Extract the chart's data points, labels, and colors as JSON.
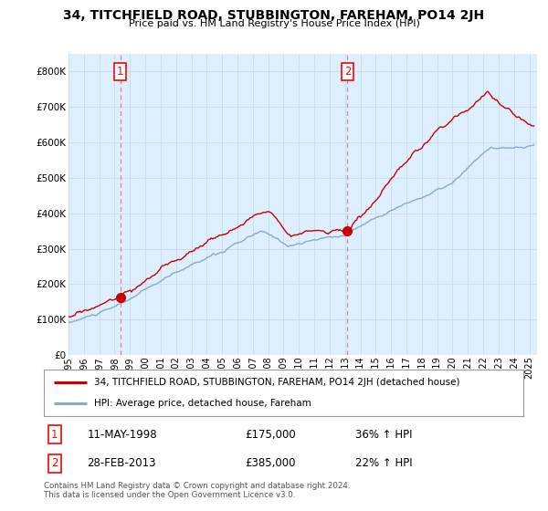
{
  "title": "34, TITCHFIELD ROAD, STUBBINGTON, FAREHAM, PO14 2JH",
  "subtitle": "Price paid vs. HM Land Registry's House Price Index (HPI)",
  "legend_line1": "34, TITCHFIELD ROAD, STUBBINGTON, FAREHAM, PO14 2JH (detached house)",
  "legend_line2": "HPI: Average price, detached house, Fareham",
  "transaction1_date": "11-MAY-1998",
  "transaction1_price": "£175,000",
  "transaction1_hpi": "36% ↑ HPI",
  "transaction1_year": 1998.37,
  "transaction1_value": 175000,
  "transaction2_date": "28-FEB-2013",
  "transaction2_price": "£385,000",
  "transaction2_hpi": "22% ↑ HPI",
  "transaction2_year": 2013.16,
  "transaction2_value": 385000,
  "red_line_color": "#cc0000",
  "blue_line_color": "#88aacc",
  "vline_color": "#dd8888",
  "grid_color": "#ccddee",
  "background_color": "#ffffff",
  "plot_bg_color": "#ddeeff",
  "footer": "Contains HM Land Registry data © Crown copyright and database right 2024.\nThis data is licensed under the Open Government Licence v3.0.",
  "ylim": [
    0,
    850000
  ],
  "yticks": [
    0,
    100000,
    200000,
    300000,
    400000,
    500000,
    600000,
    700000,
    800000
  ],
  "xmin": 1995.0,
  "xmax": 2025.5,
  "xticks": [
    1995,
    1996,
    1997,
    1998,
    1999,
    2000,
    2001,
    2002,
    2003,
    2004,
    2005,
    2006,
    2007,
    2008,
    2009,
    2010,
    2011,
    2012,
    2013,
    2014,
    2015,
    2016,
    2017,
    2018,
    2019,
    2020,
    2021,
    2022,
    2023,
    2024,
    2025
  ]
}
